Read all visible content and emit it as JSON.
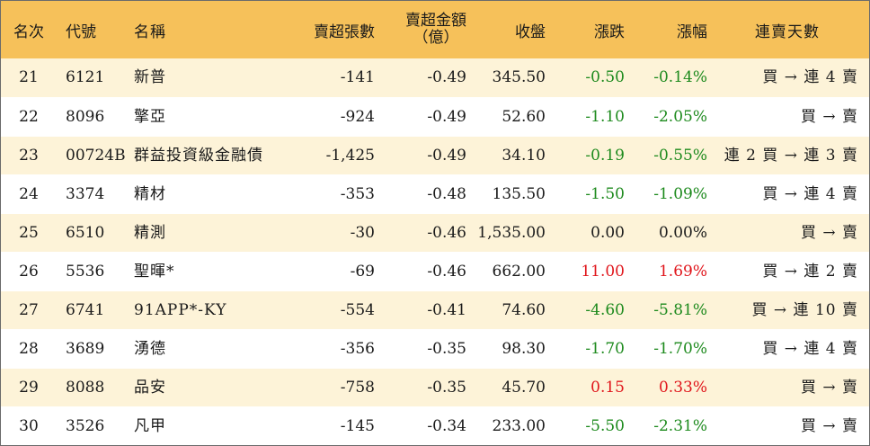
{
  "headers": {
    "rank": "名次",
    "code": "代號",
    "name": "名稱",
    "net_sell_lots": "賣超張數",
    "net_sell_amount_line1": "賣超金額",
    "net_sell_amount_line2": "（億）",
    "close": "收盤",
    "change": "漲跌",
    "pct": "漲幅",
    "streak": "連賣天數"
  },
  "colors": {
    "header_bg": "#f6c15a",
    "stripe_bg": "#fdf3d8",
    "up": "#e0151b",
    "down": "#1d8a1d"
  },
  "rows": [
    {
      "rank": "21",
      "code": "6121",
      "name": "新普",
      "lots": "-141",
      "amount": "-0.49",
      "close": "345.50",
      "change": "-0.50",
      "pct": "-0.14%",
      "streak": "買 → 連 4 賣",
      "dir": "down"
    },
    {
      "rank": "22",
      "code": "8096",
      "name": "擎亞",
      "lots": "-924",
      "amount": "-0.49",
      "close": "52.60",
      "change": "-1.10",
      "pct": "-2.05%",
      "streak": "買 → 賣",
      "dir": "down"
    },
    {
      "rank": "23",
      "code": "00724B",
      "name": "群益投資級金融債",
      "lots": "-1,425",
      "amount": "-0.49",
      "close": "34.10",
      "change": "-0.19",
      "pct": "-0.55%",
      "streak": "連 2 買 → 連 3 賣",
      "dir": "down"
    },
    {
      "rank": "24",
      "code": "3374",
      "name": "精材",
      "lots": "-353",
      "amount": "-0.48",
      "close": "135.50",
      "change": "-1.50",
      "pct": "-1.09%",
      "streak": "買 → 連 4 賣",
      "dir": "down"
    },
    {
      "rank": "25",
      "code": "6510",
      "name": "精測",
      "lots": "-30",
      "amount": "-0.46",
      "close": "1,535.00",
      "change": "0.00",
      "pct": "0.00%",
      "streak": "買 → 賣",
      "dir": "flat"
    },
    {
      "rank": "26",
      "code": "5536",
      "name": "聖暉*",
      "lots": "-69",
      "amount": "-0.46",
      "close": "662.00",
      "change": "11.00",
      "pct": "1.69%",
      "streak": "買 → 連 2 賣",
      "dir": "up"
    },
    {
      "rank": "27",
      "code": "6741",
      "name": "91APP*-KY",
      "lots": "-554",
      "amount": "-0.41",
      "close": "74.60",
      "change": "-4.60",
      "pct": "-5.81%",
      "streak": "買 → 連 10 賣",
      "dir": "down"
    },
    {
      "rank": "28",
      "code": "3689",
      "name": "湧德",
      "lots": "-356",
      "amount": "-0.35",
      "close": "98.30",
      "change": "-1.70",
      "pct": "-1.70%",
      "streak": "買 → 連 4 賣",
      "dir": "down"
    },
    {
      "rank": "29",
      "code": "8088",
      "name": "品安",
      "lots": "-758",
      "amount": "-0.35",
      "close": "45.70",
      "change": "0.15",
      "pct": "0.33%",
      "streak": "買 → 賣",
      "dir": "up"
    },
    {
      "rank": "30",
      "code": "3526",
      "name": "凡甲",
      "lots": "-145",
      "amount": "-0.34",
      "close": "233.00",
      "change": "-5.50",
      "pct": "-2.31%",
      "streak": "買 → 賣",
      "dir": "down"
    }
  ]
}
